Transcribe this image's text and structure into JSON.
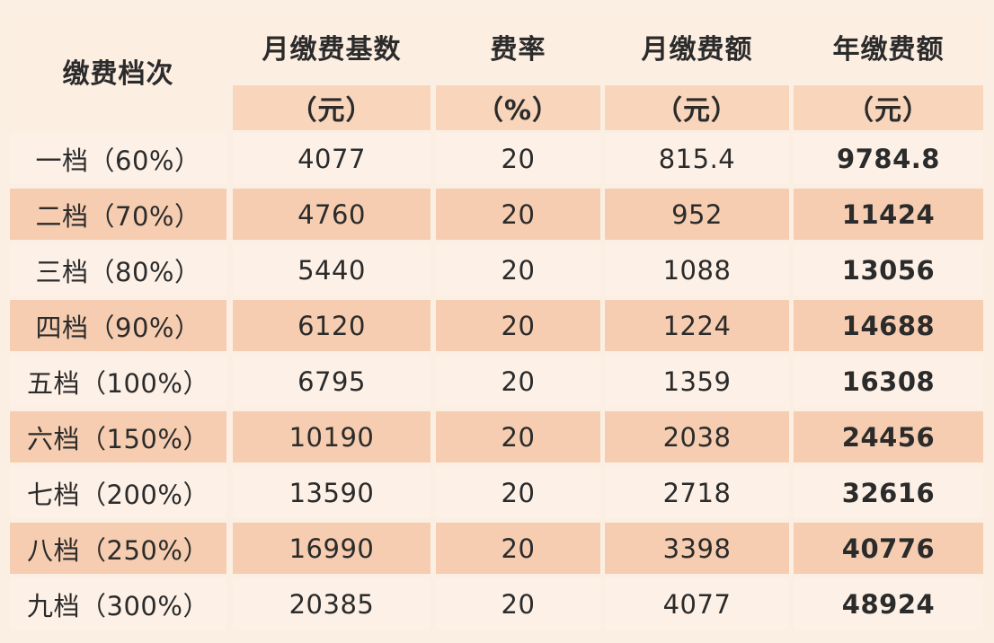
{
  "table": {
    "headers": {
      "level": "缴费档次",
      "base": "月缴费基数",
      "base_unit": "（元）",
      "rate": "费率",
      "rate_unit": "（%）",
      "monthly": "月缴费额",
      "monthly_unit": "（元）",
      "annual": "年缴费额",
      "annual_unit": "（元）"
    },
    "rows": [
      {
        "level": "一档（60%）",
        "base": "4077",
        "rate": "20",
        "monthly": "815.4",
        "annual": "9784.8"
      },
      {
        "level": "二档（70%）",
        "base": "4760",
        "rate": "20",
        "monthly": "952",
        "annual": "11424"
      },
      {
        "level": "三档（80%）",
        "base": "5440",
        "rate": "20",
        "monthly": "1088",
        "annual": "13056"
      },
      {
        "level": "四档（90%）",
        "base": "6120",
        "rate": "20",
        "monthly": "1224",
        "annual": "14688"
      },
      {
        "level": "五档（100%）",
        "base": "6795",
        "rate": "20",
        "monthly": "1359",
        "annual": "16308"
      },
      {
        "level": "六档（150%）",
        "base": "10190",
        "rate": "20",
        "monthly": "2038",
        "annual": "24456"
      },
      {
        "level": "七档（200%）",
        "base": "13590",
        "rate": "20",
        "monthly": "2718",
        "annual": "32616"
      },
      {
        "level": "八档（250%）",
        "base": "16990",
        "rate": "20",
        "monthly": "3398",
        "annual": "40776"
      },
      {
        "level": "九档（300%）",
        "base": "20385",
        "rate": "20",
        "monthly": "4077",
        "annual": "48924"
      }
    ]
  }
}
